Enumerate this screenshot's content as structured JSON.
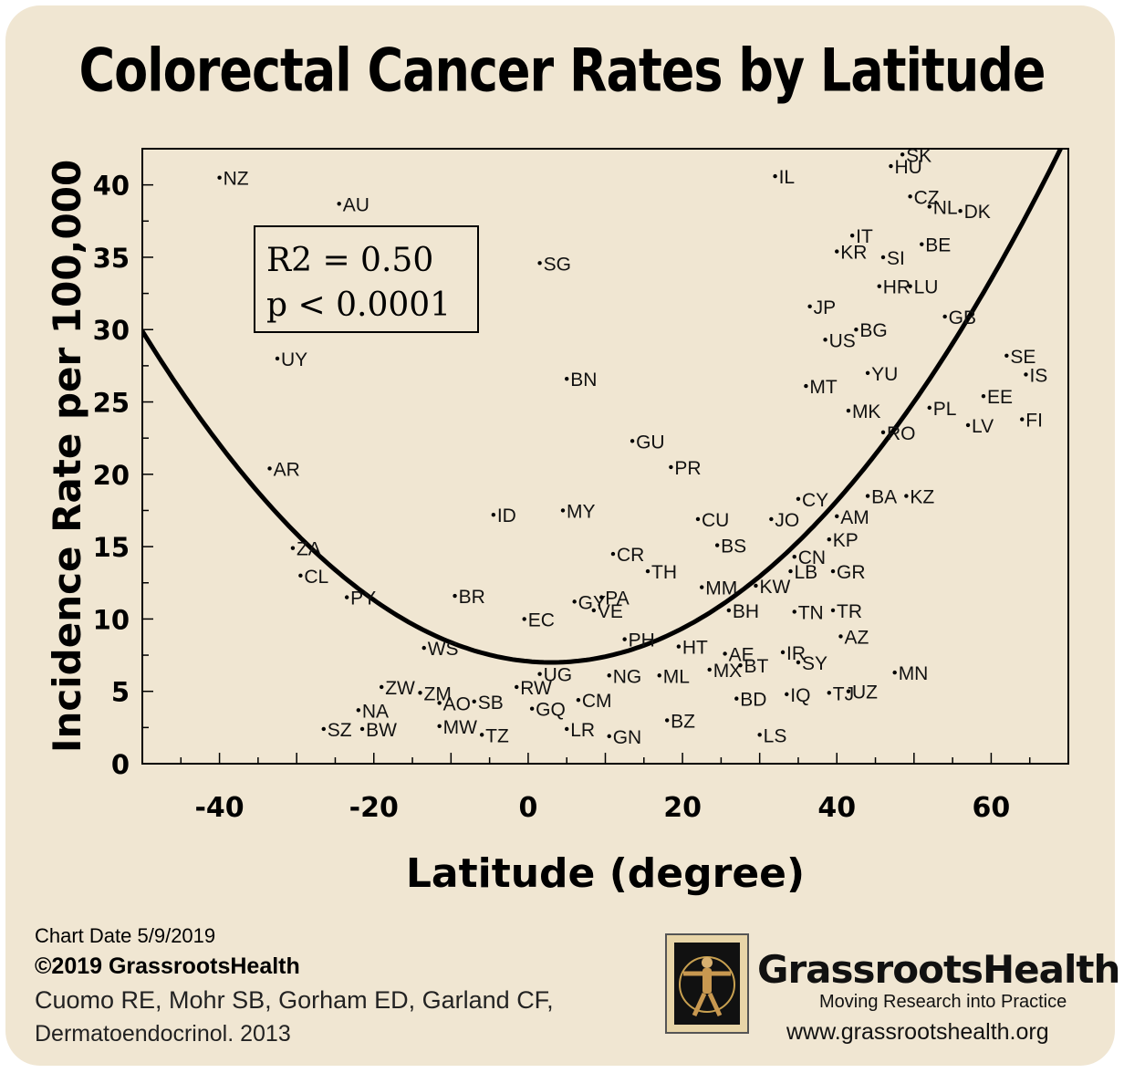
{
  "title": "Colorectal Cancer Rates by Latitude",
  "footer": {
    "chart_date": "Chart Date 5/9/2019",
    "copyright": "©2019 GrassrootsHealth",
    "authors": "Cuomo RE, Mohr SB, Gorham ED, Garland CF,",
    "journal": "Dermatoendocrinol. 2013"
  },
  "brand": {
    "name": "GrassrootsHealth",
    "tagline": "Moving Research into Practice",
    "url": "www.grassrootshealth.org",
    "logo_icon": "vitruvian-man-icon"
  },
  "colors": {
    "background": "#f0e6d2",
    "ink": "#000000"
  },
  "chart_data": {
    "type": "scatter",
    "title": "",
    "xlabel": "Latitude (degree)",
    "ylabel": "Incidence Rate per 100,000",
    "xlim": [
      -50,
      70
    ],
    "ylim": [
      0,
      42.5
    ],
    "xticks": [
      -40,
      -20,
      0,
      20,
      40,
      60
    ],
    "yticks": [
      0,
      5,
      10,
      15,
      20,
      25,
      30,
      35,
      40
    ],
    "stats": {
      "r2": "R2 = 0.50",
      "p": "p < 0.0001"
    },
    "fit": {
      "type": "quadratic",
      "vertex_x": 3,
      "vertex_y": 7.0,
      "a": 0.00815
    },
    "points": [
      {
        "label": "NZ",
        "x": -40,
        "y": 40.5
      },
      {
        "label": "AU",
        "x": -24.5,
        "y": 38.7
      },
      {
        "label": "UY",
        "x": -32.5,
        "y": 28.0
      },
      {
        "label": "AR",
        "x": -33.5,
        "y": 20.4
      },
      {
        "label": "ZA",
        "x": -30.5,
        "y": 14.9
      },
      {
        "label": "CL",
        "x": -29.5,
        "y": 13.0
      },
      {
        "label": "PY",
        "x": -23.5,
        "y": 11.5
      },
      {
        "label": "BR",
        "x": -9.5,
        "y": 11.6
      },
      {
        "label": "WS",
        "x": -13.5,
        "y": 8.0
      },
      {
        "label": "ZW",
        "x": -19,
        "y": 5.3
      },
      {
        "label": "ZM",
        "x": -14,
        "y": 4.9
      },
      {
        "label": "NA",
        "x": -22,
        "y": 3.7
      },
      {
        "label": "SZ",
        "x": -26.5,
        "y": 2.4
      },
      {
        "label": "BW",
        "x": -21.5,
        "y": 2.4
      },
      {
        "label": "AO",
        "x": -11.5,
        "y": 4.2
      },
      {
        "label": "SB",
        "x": -7,
        "y": 4.3
      },
      {
        "label": "MW",
        "x": -11.5,
        "y": 2.6
      },
      {
        "label": "TZ",
        "x": -6,
        "y": 2.0
      },
      {
        "label": "ID",
        "x": -4.5,
        "y": 17.2
      },
      {
        "label": "SG",
        "x": 1.5,
        "y": 34.6
      },
      {
        "label": "BN",
        "x": 5,
        "y": 26.6
      },
      {
        "label": "MY",
        "x": 4.5,
        "y": 17.5
      },
      {
        "label": "EC",
        "x": -0.5,
        "y": 10.0
      },
      {
        "label": "UG",
        "x": 1.5,
        "y": 6.2
      },
      {
        "label": "RW",
        "x": -1.5,
        "y": 5.3
      },
      {
        "label": "GQ",
        "x": 0.5,
        "y": 3.8
      },
      {
        "label": "LR",
        "x": 5,
        "y": 2.4
      },
      {
        "label": "CM",
        "x": 6.5,
        "y": 4.4
      },
      {
        "label": "GN",
        "x": 10.5,
        "y": 1.9
      },
      {
        "label": "NG",
        "x": 10.5,
        "y": 6.1
      },
      {
        "label": "GY",
        "x": 6,
        "y": 11.2
      },
      {
        "label": "VE",
        "x": 8.5,
        "y": 10.6
      },
      {
        "label": "PA",
        "x": 9.5,
        "y": 11.5
      },
      {
        "label": "CR",
        "x": 11,
        "y": 14.5
      },
      {
        "label": "GU",
        "x": 13.5,
        "y": 22.3
      },
      {
        "label": "PR",
        "x": 18.5,
        "y": 20.5
      },
      {
        "label": "TH",
        "x": 15.5,
        "y": 13.3
      },
      {
        "label": "PH",
        "x": 12.5,
        "y": 8.6
      },
      {
        "label": "ML",
        "x": 17,
        "y": 6.1
      },
      {
        "label": "BZ",
        "x": 18,
        "y": 3.0
      },
      {
        "label": "HT",
        "x": 19.5,
        "y": 8.1
      },
      {
        "label": "MX",
        "x": 23.5,
        "y": 6.5
      },
      {
        "label": "CU",
        "x": 22,
        "y": 16.9
      },
      {
        "label": "BS",
        "x": 24.5,
        "y": 15.1
      },
      {
        "label": "MM",
        "x": 22.5,
        "y": 12.2
      },
      {
        "label": "BH",
        "x": 26,
        "y": 10.6
      },
      {
        "label": "AE",
        "x": 25.5,
        "y": 7.6
      },
      {
        "label": "BT",
        "x": 27.5,
        "y": 6.8
      },
      {
        "label": "BD",
        "x": 27,
        "y": 4.5
      },
      {
        "label": "LS",
        "x": 30,
        "y": 2.0
      },
      {
        "label": "IL",
        "x": 32,
        "y": 40.6
      },
      {
        "label": "JO",
        "x": 31.5,
        "y": 16.9
      },
      {
        "label": "KW",
        "x": 29.5,
        "y": 12.3
      },
      {
        "label": "CN",
        "x": 34.5,
        "y": 14.3
      },
      {
        "label": "LB",
        "x": 34,
        "y": 13.3
      },
      {
        "label": "IR",
        "x": 33,
        "y": 7.7
      },
      {
        "label": "SY",
        "x": 35,
        "y": 7.0
      },
      {
        "label": "IQ",
        "x": 33.5,
        "y": 4.8
      },
      {
        "label": "TN",
        "x": 34.5,
        "y": 10.5
      },
      {
        "label": "CY",
        "x": 35,
        "y": 18.3
      },
      {
        "label": "KP",
        "x": 39,
        "y": 15.5
      },
      {
        "label": "AM",
        "x": 40,
        "y": 17.1
      },
      {
        "label": "GR",
        "x": 39.5,
        "y": 13.3
      },
      {
        "label": "TR",
        "x": 39.5,
        "y": 10.6
      },
      {
        "label": "AZ",
        "x": 40.5,
        "y": 8.8
      },
      {
        "label": "TJ",
        "x": 39,
        "y": 4.9
      },
      {
        "label": "UZ",
        "x": 41.5,
        "y": 5.0
      },
      {
        "label": "JP",
        "x": 36.5,
        "y": 31.6
      },
      {
        "label": "US",
        "x": 38.5,
        "y": 29.3
      },
      {
        "label": "BG",
        "x": 42.5,
        "y": 30.0
      },
      {
        "label": "MT",
        "x": 36,
        "y": 26.1
      },
      {
        "label": "MK",
        "x": 41.5,
        "y": 24.4
      },
      {
        "label": "YU",
        "x": 44,
        "y": 27.0
      },
      {
        "label": "RO",
        "x": 46,
        "y": 22.9
      },
      {
        "label": "BA",
        "x": 44,
        "y": 18.5
      },
      {
        "label": "KZ",
        "x": 49,
        "y": 18.5
      },
      {
        "label": "MN",
        "x": 47.5,
        "y": 6.3
      },
      {
        "label": "KR",
        "x": 40,
        "y": 35.4
      },
      {
        "label": "IT",
        "x": 42,
        "y": 36.5
      },
      {
        "label": "SI",
        "x": 46,
        "y": 35.0
      },
      {
        "label": "HR",
        "x": 45.5,
        "y": 33.0
      },
      {
        "label": "LU",
        "x": 49.5,
        "y": 33.0
      },
      {
        "label": "HU",
        "x": 47,
        "y": 41.3
      },
      {
        "label": "SK",
        "x": 48.5,
        "y": 42.1
      },
      {
        "label": "CZ",
        "x": 49.5,
        "y": 39.2
      },
      {
        "label": "NL",
        "x": 52,
        "y": 38.5
      },
      {
        "label": "DK",
        "x": 56,
        "y": 38.2
      },
      {
        "label": "BE",
        "x": 51,
        "y": 35.9
      },
      {
        "label": "GB",
        "x": 54,
        "y": 30.9
      },
      {
        "label": "PL",
        "x": 52,
        "y": 24.6
      },
      {
        "label": "LV",
        "x": 57,
        "y": 23.4
      },
      {
        "label": "EE",
        "x": 59,
        "y": 25.4
      },
      {
        "label": "SE",
        "x": 62,
        "y": 28.2
      },
      {
        "label": "IS",
        "x": 64.5,
        "y": 26.9
      },
      {
        "label": "FI",
        "x": 64,
        "y": 23.8
      }
    ]
  }
}
